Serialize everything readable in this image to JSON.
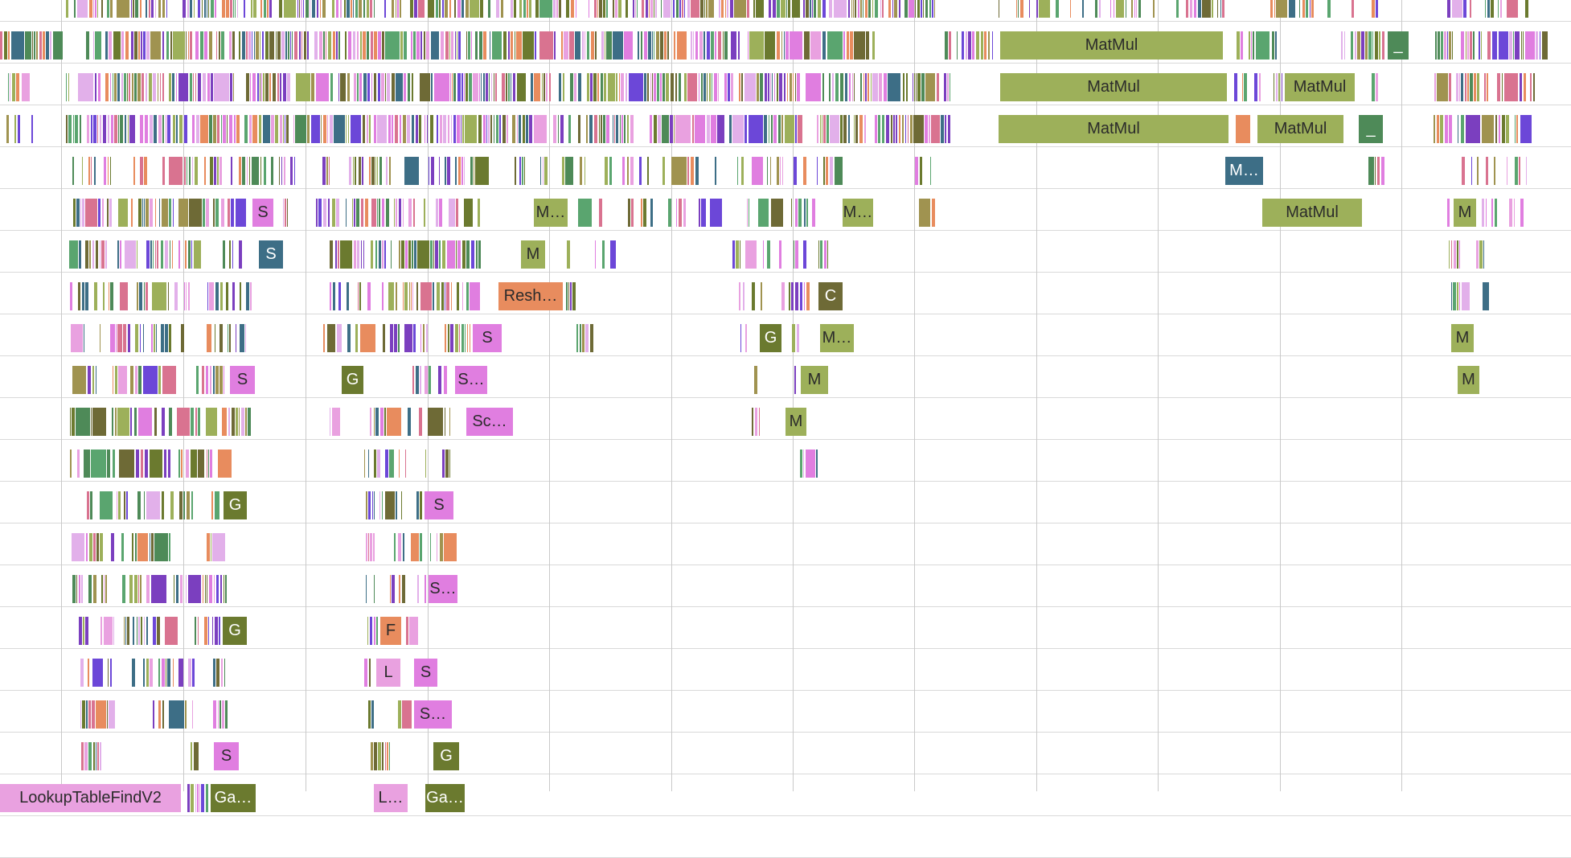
{
  "palette": [
    "#9db05a",
    "#6e6a36",
    "#3d6e86",
    "#5aa56f",
    "#e07ee0",
    "#e9a1e0",
    "#7b3fbf",
    "#e88c5e",
    "#6b7a2f",
    "#d97390",
    "#6c47d8",
    "#4e8a58",
    "#a09350",
    "#e2b0ea"
  ],
  "rows": [
    {
      "labels": []
    },
    {
      "labels": [
        {
          "text": "MatMul",
          "color": "#9db05a"
        },
        {
          "text": "_",
          "color": "#4e8a58"
        }
      ]
    },
    {
      "labels": [
        {
          "text": "MatMul",
          "color": "#9db05a"
        },
        {
          "text": "MatMul",
          "color": "#9db05a"
        }
      ]
    },
    {
      "labels": [
        {
          "text": "MatMul",
          "color": "#9db05a"
        },
        {
          "text": "MatMul",
          "color": "#9db05a"
        },
        {
          "text": "_",
          "color": "#4e8a58"
        }
      ]
    },
    {
      "labels": [
        {
          "text": "M…",
          "color": "#3d6e86"
        }
      ]
    },
    {
      "labels": [
        {
          "text": "S",
          "color": "#e07ee0"
        },
        {
          "text": "M…",
          "color": "#9db05a"
        },
        {
          "text": "M…",
          "color": "#9db05a"
        },
        {
          "text": "MatMul",
          "color": "#9db05a"
        },
        {
          "text": "M",
          "color": "#9db05a"
        }
      ]
    },
    {
      "labels": [
        {
          "text": "S",
          "color": "#3d6e86"
        },
        {
          "text": "M",
          "color": "#9db05a"
        }
      ]
    },
    {
      "labels": [
        {
          "text": "Resh…",
          "color": "#e88c5e"
        },
        {
          "text": "C",
          "color": "#6e6a36"
        }
      ]
    },
    {
      "labels": [
        {
          "text": "S",
          "color": "#e07ee0"
        },
        {
          "text": "G",
          "color": "#6b7a2f"
        },
        {
          "text": "M…",
          "color": "#9db05a"
        },
        {
          "text": "M",
          "color": "#9db05a"
        }
      ]
    },
    {
      "labels": [
        {
          "text": "S",
          "color": "#e07ee0"
        },
        {
          "text": "G",
          "color": "#6b7a2f"
        },
        {
          "text": "S…",
          "color": "#e07ee0"
        },
        {
          "text": "M",
          "color": "#9db05a"
        },
        {
          "text": "M",
          "color": "#9db05a"
        }
      ]
    },
    {
      "labels": [
        {
          "text": "Sc…",
          "color": "#e07ee0"
        },
        {
          "text": "M",
          "color": "#9db05a"
        }
      ]
    },
    {
      "labels": []
    },
    {
      "labels": [
        {
          "text": "G",
          "color": "#6b7a2f"
        },
        {
          "text": "S",
          "color": "#e07ee0"
        }
      ]
    },
    {
      "labels": []
    },
    {
      "labels": [
        {
          "text": "S…",
          "color": "#e07ee0"
        }
      ]
    },
    {
      "labels": [
        {
          "text": "G",
          "color": "#6b7a2f"
        },
        {
          "text": "F",
          "color": "#e88c5e"
        }
      ]
    },
    {
      "labels": [
        {
          "text": "L",
          "color": "#e9a1e0"
        },
        {
          "text": "S",
          "color": "#e07ee0"
        }
      ]
    },
    {
      "labels": [
        {
          "text": "S…",
          "color": "#e07ee0"
        }
      ]
    },
    {
      "labels": [
        {
          "text": "S",
          "color": "#e07ee0"
        },
        {
          "text": "G",
          "color": "#6b7a2f"
        }
      ]
    },
    {
      "labels": [
        {
          "text": "LookupTableFindV2",
          "color": "#e9a1e0"
        },
        {
          "text": "Ga…",
          "color": "#6b7a2f"
        },
        {
          "text": "L…",
          "color": "#e9a1e0"
        },
        {
          "text": "Ga…",
          "color": "#6b7a2f"
        }
      ]
    }
  ]
}
